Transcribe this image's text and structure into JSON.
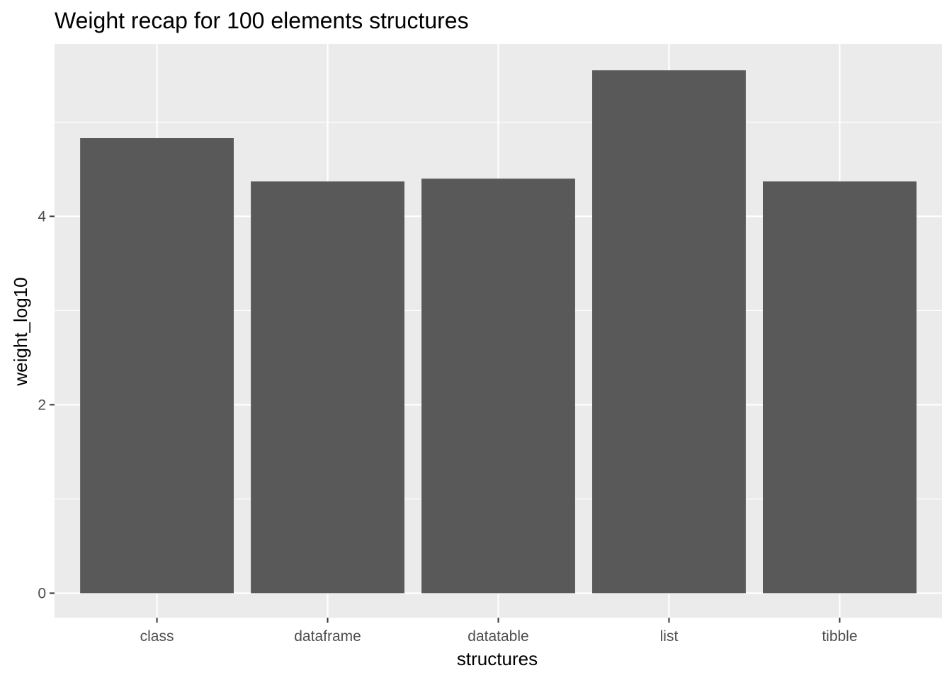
{
  "chart_data": {
    "type": "bar",
    "title": "Weight recap for  100  elements structures",
    "xlabel": "structures",
    "ylabel": "weight_log10",
    "categories": [
      "class",
      "dataframe",
      "datatable",
      "list",
      "tibble"
    ],
    "values": [
      4.83,
      4.37,
      4.4,
      5.55,
      4.37
    ],
    "ylim": [
      -0.26,
      5.83
    ],
    "yticks": [
      0,
      2,
      4
    ],
    "ytick_labels": [
      "0",
      "2",
      "4"
    ],
    "y_minor_gridlines": [
      1,
      3,
      5
    ],
    "grid": true,
    "legend": "none",
    "colors": {
      "panel_background": "#ebebeb",
      "gridline": "#ffffff",
      "bar_fill": "#595959",
      "tick": "#333333",
      "tick_label": "#4d4d4d"
    }
  }
}
